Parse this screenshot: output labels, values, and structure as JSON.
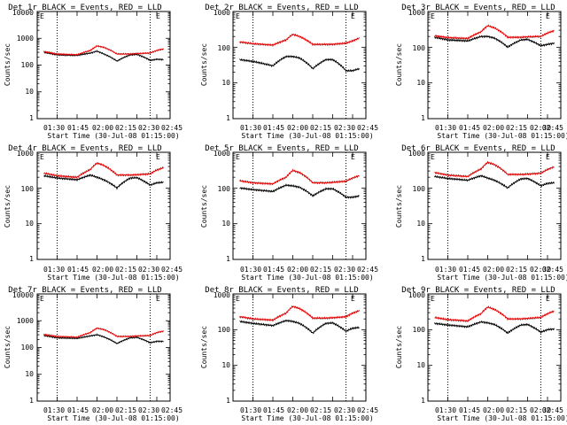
{
  "figure": {
    "panels": [
      {
        "title": "Det 1r BLACK = Events, RED = LLD",
        "ytick_labels": [
          "10000",
          "1000",
          "100",
          "10",
          "1"
        ]
      },
      {
        "title": "Det 2r BLACK = Events, RED = LLD",
        "ytick_labels": [
          "1000",
          "100",
          "10",
          "1"
        ]
      },
      {
        "title": "Det 3r BLACK = Events, RED = LLD",
        "ytick_labels": [
          "1000",
          "100",
          "10",
          "1"
        ]
      },
      {
        "title": "Det 4r BLACK = Events, RED = LLD",
        "ytick_labels": [
          "1000",
          "100",
          "10",
          "1"
        ]
      },
      {
        "title": "Det 5r BLACK = Events, RED = LLD",
        "ytick_labels": [
          "1000",
          "100",
          "10",
          "1"
        ]
      },
      {
        "title": "Det 6r BLACK = Events, RED = LLD",
        "ytick_labels": [
          "1000",
          "100",
          "10",
          "1"
        ]
      },
      {
        "title": "Det 7r BLACK = Events, RED = LLD",
        "ytick_labels": [
          "10000",
          "1000",
          "100",
          "10",
          "1"
        ]
      },
      {
        "title": "Det 8r BLACK = Events, RED = LLD",
        "ytick_labels": [
          "1000",
          "100",
          "10",
          "1"
        ]
      },
      {
        "title": "Det 9r BLACK = Events, RED = LLD",
        "ytick_labels": [
          "1000",
          "100",
          "10",
          "1"
        ]
      }
    ],
    "xtick_labels": [
      "01:30",
      "01:45",
      "02:00",
      "02:15",
      "02:30",
      "02:45"
    ],
    "xlabel": "Start Time (30-Jul-08 01:15:00)",
    "ylabel": "Counts/sec",
    "corner_labels": {
      "left": "E",
      "right": "E"
    },
    "colors": {
      "events": "#000000",
      "lld": "#e00000"
    }
  },
  "chart_data": [
    {
      "type": "line",
      "title": "Det 1r BLACK = Events, RED = LLD",
      "xlabel": "Start Time (30-Jul-08 01:15:00)",
      "ylabel": "Counts/sec",
      "y_scale": "log",
      "ylim": [
        1,
        10000
      ],
      "x": [
        "01:20",
        "01:30",
        "01:45",
        "01:55",
        "02:00",
        "02:05",
        "02:15",
        "02:25",
        "02:30",
        "02:40",
        "02:45",
        "02:50"
      ],
      "series": [
        {
          "name": "Events",
          "values": [
            300,
            240,
            230,
            280,
            330,
            260,
            140,
            240,
            250,
            150,
            165,
            160
          ]
        },
        {
          "name": "LLD",
          "values": [
            320,
            260,
            240,
            350,
            520,
            460,
            260,
            260,
            270,
            280,
            350,
            400
          ]
        }
      ],
      "vlines": [
        "01:30",
        "02:40"
      ],
      "grid": false
    },
    {
      "type": "line",
      "title": "Det 2r BLACK = Events, RED = LLD",
      "xlabel": "Start Time (30-Jul-08 01:15:00)",
      "ylabel": "Counts/sec",
      "y_scale": "log",
      "ylim": [
        1,
        1000
      ],
      "x": [
        "01:20",
        "01:30",
        "01:45",
        "01:55",
        "02:00",
        "02:05",
        "02:15",
        "02:25",
        "02:30",
        "02:40",
        "02:45",
        "02:50"
      ],
      "series": [
        {
          "name": "Events",
          "values": [
            45,
            40,
            30,
            55,
            55,
            50,
            25,
            45,
            45,
            22,
            22,
            25
          ]
        },
        {
          "name": "LLD",
          "values": [
            140,
            125,
            115,
            160,
            230,
            200,
            120,
            120,
            120,
            130,
            150,
            180
          ]
        }
      ],
      "vlines": [
        "01:30",
        "02:40"
      ],
      "grid": false
    },
    {
      "type": "line",
      "title": "Det 3r BLACK = Events, RED = LLD",
      "xlabel": "Start Time (30-Jul-08 01:15:00)",
      "ylabel": "Counts/sec",
      "y_scale": "log",
      "ylim": [
        1,
        1000
      ],
      "x": [
        "01:20",
        "01:30",
        "01:45",
        "01:55",
        "02:00",
        "02:05",
        "02:15",
        "02:25",
        "02:30",
        "02:40",
        "02:45",
        "02:50"
      ],
      "series": [
        {
          "name": "Events",
          "values": [
            190,
            160,
            150,
            200,
            200,
            180,
            100,
            160,
            165,
            110,
            120,
            130
          ]
        },
        {
          "name": "LLD",
          "values": [
            210,
            185,
            175,
            270,
            400,
            350,
            190,
            190,
            195,
            200,
            250,
            290
          ]
        }
      ],
      "vlines": [
        "01:30",
        "02:40"
      ],
      "grid": false
    },
    {
      "type": "line",
      "title": "Det 4r BLACK = Events, RED = LLD",
      "xlabel": "Start Time (30-Jul-08 01:15:00)",
      "ylabel": "Counts/sec",
      "y_scale": "log",
      "ylim": [
        1,
        1000
      ],
      "x": [
        "01:20",
        "01:30",
        "01:45",
        "01:55",
        "02:00",
        "02:05",
        "02:15",
        "02:25",
        "02:30",
        "02:40",
        "02:45",
        "02:50"
      ],
      "series": [
        {
          "name": "Events",
          "values": [
            220,
            190,
            170,
            230,
            200,
            170,
            100,
            190,
            195,
            120,
            140,
            145
          ]
        },
        {
          "name": "LLD",
          "values": [
            260,
            220,
            200,
            330,
            500,
            430,
            230,
            230,
            235,
            250,
            320,
            370
          ]
        }
      ],
      "vlines": [
        "01:30",
        "02:40"
      ],
      "grid": false
    },
    {
      "type": "line",
      "title": "Det 5r BLACK = Events, RED = LLD",
      "xlabel": "Start Time (30-Jul-08 01:15:00)",
      "ylabel": "Counts/sec",
      "y_scale": "log",
      "ylim": [
        1,
        1000
      ],
      "x": [
        "01:20",
        "01:30",
        "01:45",
        "01:55",
        "02:00",
        "02:05",
        "02:15",
        "02:25",
        "02:30",
        "02:40",
        "02:45",
        "02:50"
      ],
      "series": [
        {
          "name": "Events",
          "values": [
            100,
            90,
            80,
            120,
            115,
            105,
            60,
            95,
            95,
            55,
            55,
            60
          ]
        },
        {
          "name": "LLD",
          "values": [
            160,
            140,
            130,
            200,
            310,
            270,
            140,
            140,
            145,
            155,
            190,
            220
          ]
        }
      ],
      "vlines": [
        "01:30",
        "02:40"
      ],
      "grid": false
    },
    {
      "type": "line",
      "title": "Det 6r BLACK = Events, RED = LLD",
      "xlabel": "Start Time (30-Jul-08 01:15:00)",
      "ylabel": "Counts/sec",
      "y_scale": "log",
      "ylim": [
        1,
        1000
      ],
      "x": [
        "01:20",
        "01:30",
        "01:45",
        "01:55",
        "02:00",
        "02:05",
        "02:15",
        "02:25",
        "02:30",
        "02:40",
        "02:45",
        "02:50"
      ],
      "series": [
        {
          "name": "Events",
          "values": [
            210,
            185,
            165,
            220,
            190,
            165,
            100,
            180,
            185,
            115,
            135,
            140
          ]
        },
        {
          "name": "LLD",
          "values": [
            270,
            230,
            210,
            340,
            520,
            450,
            240,
            240,
            245,
            260,
            330,
            390
          ]
        }
      ],
      "vlines": [
        "01:30",
        "02:40"
      ],
      "grid": false
    },
    {
      "type": "line",
      "title": "Det 7r BLACK = Events, RED = LLD",
      "xlabel": "Start Time (30-Jul-08 01:15:00)",
      "ylabel": "Counts/sec",
      "y_scale": "log",
      "ylim": [
        1,
        10000
      ],
      "x": [
        "01:20",
        "01:30",
        "01:45",
        "01:55",
        "02:00",
        "02:05",
        "02:15",
        "02:25",
        "02:30",
        "02:40",
        "02:45",
        "02:50"
      ],
      "series": [
        {
          "name": "Events",
          "values": [
            280,
            230,
            220,
            270,
            300,
            250,
            140,
            230,
            240,
            150,
            170,
            170
          ]
        },
        {
          "name": "LLD",
          "values": [
            310,
            260,
            240,
            360,
            530,
            470,
            260,
            260,
            270,
            280,
            360,
            410
          ]
        }
      ],
      "vlines": [
        "01:30",
        "02:40"
      ],
      "grid": false
    },
    {
      "type": "line",
      "title": "Det 8r BLACK = Events, RED = LLD",
      "xlabel": "Start Time (30-Jul-08 01:15:00)",
      "ylabel": "Counts/sec",
      "y_scale": "log",
      "ylim": [
        1,
        1000
      ],
      "x": [
        "01:20",
        "01:30",
        "01:45",
        "01:55",
        "02:00",
        "02:05",
        "02:15",
        "02:25",
        "02:30",
        "02:40",
        "02:45",
        "02:50"
      ],
      "series": [
        {
          "name": "Events",
          "values": [
            170,
            150,
            130,
            180,
            170,
            150,
            80,
            150,
            155,
            90,
            110,
            115
          ]
        },
        {
          "name": "LLD",
          "values": [
            230,
            200,
            185,
            290,
            450,
            390,
            210,
            210,
            215,
            230,
            290,
            340
          ]
        }
      ],
      "vlines": [
        "01:30",
        "02:40"
      ],
      "grid": false
    },
    {
      "type": "line",
      "title": "Det 9r BLACK = Events, RED = LLD",
      "xlabel": "Start Time (30-Jul-08 01:15:00)",
      "ylabel": "Counts/sec",
      "y_scale": "log",
      "ylim": [
        1,
        1000
      ],
      "x": [
        "01:20",
        "01:30",
        "01:45",
        "01:55",
        "02:00",
        "02:05",
        "02:15",
        "02:25",
        "02:30",
        "02:40",
        "02:45",
        "02:50"
      ],
      "series": [
        {
          "name": "Events",
          "values": [
            150,
            135,
            120,
            165,
            155,
            140,
            80,
            135,
            140,
            85,
            100,
            105
          ]
        },
        {
          "name": "LLD",
          "values": [
            220,
            190,
            175,
            280,
            430,
            370,
            200,
            200,
            205,
            220,
            280,
            330
          ]
        }
      ],
      "vlines": [
        "01:30",
        "02:40"
      ],
      "grid": false
    }
  ]
}
